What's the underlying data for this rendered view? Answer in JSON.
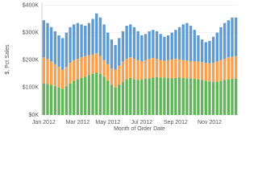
{
  "chart_data": {
    "type": "stacked_bar",
    "x_label": "Month of Order Date",
    "y_label": "$, Pct Sales",
    "categories": [
      "Jan 2012",
      null,
      null,
      null,
      null,
      null,
      null,
      null,
      null,
      "Mar 2012",
      null,
      null,
      null,
      null,
      null,
      null,
      null,
      "May 2012",
      null,
      null,
      null,
      null,
      null,
      null,
      null,
      null,
      "Jul 2012",
      null,
      null,
      null,
      null,
      null,
      null,
      null,
      null,
      "Sep 2012",
      null,
      null,
      null,
      null,
      null,
      null,
      null,
      null,
      "Nov 2012",
      null,
      null,
      null,
      null,
      null,
      null,
      null
    ],
    "series": [
      {
        "color": "#62b45a",
        "values": [
          115000,
          113000,
          110000,
          105000,
          100000,
          95000,
          105000,
          115000,
          125000,
          130000,
          135000,
          140000,
          145000,
          150000,
          155000,
          150000,
          140000,
          125000,
          110000,
          100000,
          110000,
          120000,
          130000,
          135000,
          130000,
          128000,
          130000,
          132000,
          134000,
          136000,
          138000,
          137000,
          136000,
          135000,
          134000,
          135000,
          136000,
          135000,
          134000,
          133000,
          132000,
          130000,
          128000,
          125000,
          122000,
          120000,
          122000,
          125000,
          128000,
          130000,
          132000,
          133000
        ]
      },
      {
        "color": "#f7a04f",
        "values": [
          95000,
          92000,
          85000,
          80000,
          75000,
          70000,
          70000,
          75000,
          75000,
          75000,
          75000,
          75000,
          73000,
          70000,
          70000,
          65000,
          60000,
          60000,
          60000,
          65000,
          70000,
          75000,
          75000,
          75000,
          75000,
          72000,
          65000,
          68000,
          71000,
          72000,
          67000,
          63000,
          62000,
          65000,
          68000,
          70000,
          67000,
          65000,
          64000,
          63000,
          63000,
          65000,
          65000,
          65000,
          66000,
          70000,
          73000,
          75000,
          77000,
          80000,
          80000,
          82000
        ]
      },
      {
        "color": "#5f9ad0",
        "values": [
          135000,
          130000,
          125000,
          120000,
          115000,
          115000,
          125000,
          130000,
          130000,
          130000,
          120000,
          110000,
          117000,
          130000,
          145000,
          140000,
          130000,
          115000,
          105000,
          90000,
          100000,
          110000,
          120000,
          120000,
          115000,
          105000,
          95000,
          95000,
          100000,
          102000,
          100000,
          95000,
          87000,
          90000,
          98000,
          105000,
          117000,
          130000,
          137000,
          129000,
          115000,
          95000,
          82000,
          75000,
          82000,
          95000,
          105000,
          120000,
          130000,
          135000,
          143000,
          140000
        ]
      }
    ],
    "ylim": [
      0,
      410000
    ],
    "yticks": [
      {
        "value": 0,
        "label": "$0K"
      },
      {
        "value": 100000,
        "label": "$100K"
      },
      {
        "value": 200000,
        "label": "$200K"
      },
      {
        "value": 300000,
        "label": "$300K"
      },
      {
        "value": 400000,
        "label": "$400K"
      }
    ],
    "grid": true
  }
}
